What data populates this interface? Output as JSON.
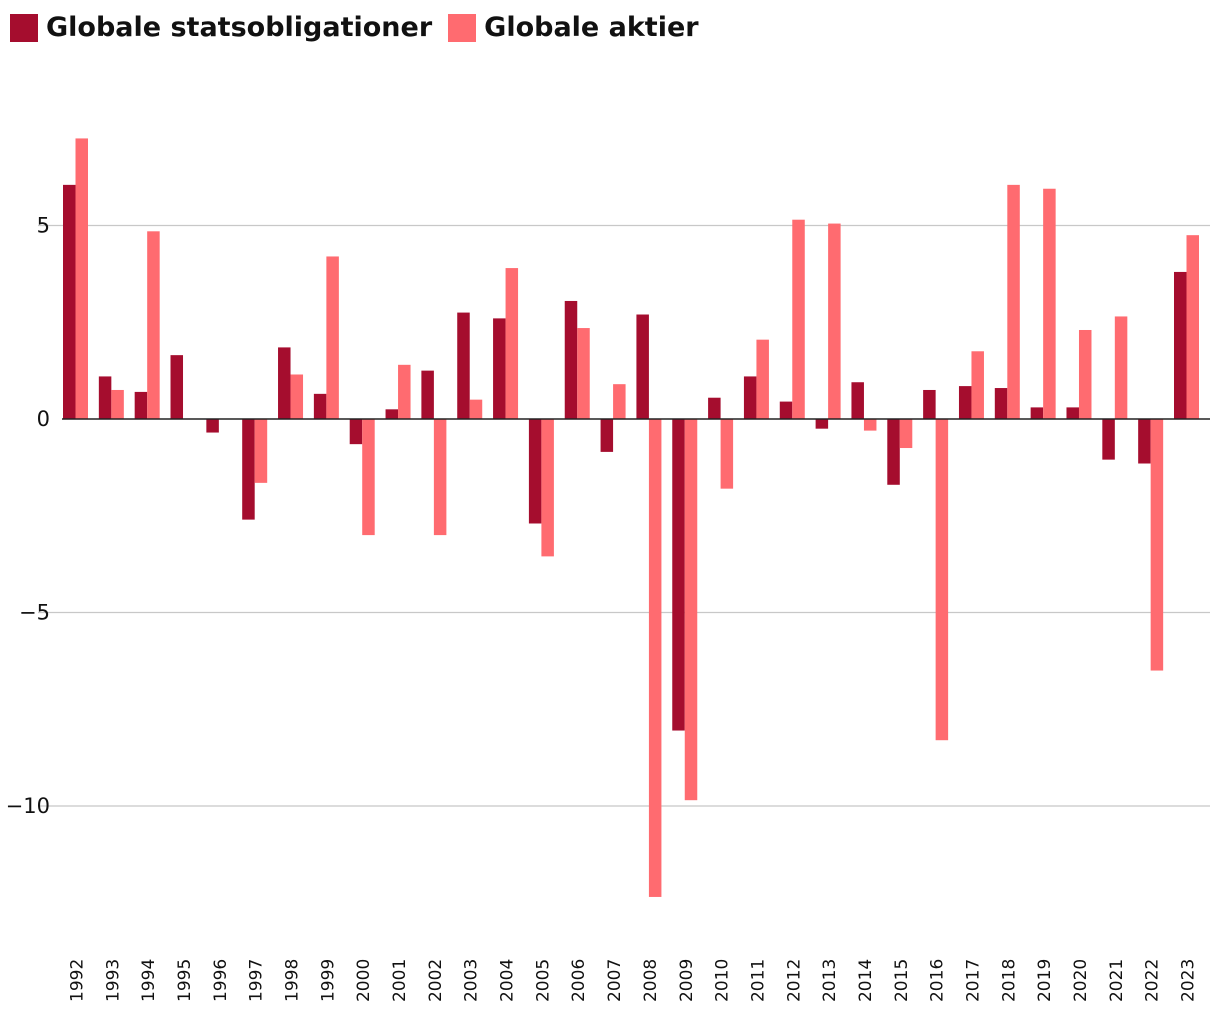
{
  "chart_data": {
    "type": "bar",
    "title": "",
    "xlabel": "",
    "ylabel": "",
    "ylim": [
      -12.8,
      8.5
    ],
    "yticks": [
      5,
      0,
      -5,
      -10
    ],
    "ytick_labels": [
      "5",
      "0",
      "−5",
      "−10"
    ],
    "grid": "horizontal",
    "legend_position": "top-left",
    "categories": [
      "1992",
      "1993",
      "1994",
      "1995",
      "1996",
      "1997",
      "1998",
      "1999",
      "2000",
      "2001",
      "2002",
      "2003",
      "2004",
      "2005",
      "2006",
      "2007",
      "2008",
      "2009",
      "2010",
      "2011",
      "2012",
      "2013",
      "2014",
      "2015",
      "2016",
      "2017",
      "2018",
      "2019",
      "2020",
      "2021",
      "2022",
      "2023"
    ],
    "series": [
      {
        "name": "Globale statsobligationer",
        "color": "#a50d2e",
        "values": [
          6.05,
          1.1,
          0.7,
          1.65,
          -0.35,
          -2.6,
          1.85,
          0.65,
          -0.65,
          0.25,
          1.25,
          2.75,
          2.6,
          -2.7,
          3.05,
          -0.85,
          2.7,
          -8.05,
          0.55,
          1.1,
          0.45,
          -0.25,
          0.95,
          -1.7,
          0.75,
          0.85,
          0.8,
          0.3,
          0.3,
          -1.05,
          -1.15,
          3.8
        ]
      },
      {
        "name": "Globale aktier",
        "color": "#ff6b70",
        "values": [
          7.25,
          0.75,
          4.85,
          0.0,
          0.0,
          -1.65,
          1.15,
          4.2,
          -3.0,
          1.4,
          -3.0,
          0.5,
          3.9,
          -3.55,
          2.35,
          0.9,
          -12.35,
          -9.85,
          -1.8,
          2.05,
          5.15,
          5.05,
          -0.3,
          -0.75,
          -8.3,
          1.75,
          6.05,
          5.95,
          2.3,
          2.65,
          -6.5,
          4.75
        ]
      }
    ]
  }
}
